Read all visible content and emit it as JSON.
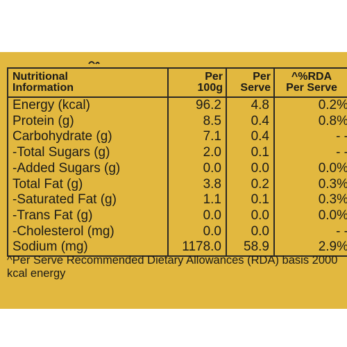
{
  "header": {
    "col1": "Nutritional\nInformation",
    "col2": "Per\n100g",
    "col3": "Per\nServe",
    "col4": "^%RDA\nPer Serve"
  },
  "rows": [
    {
      "name": "Energy (kcal)",
      "per100": "96.2",
      "serve": "4.8",
      "rda": "0.2%"
    },
    {
      "name": "Protein (g)",
      "per100": "8.5",
      "serve": "0.4",
      "rda": "0.8%"
    },
    {
      "name": "Carbohydrate (g)",
      "per100": "7.1",
      "serve": "0.4",
      "rda": "- -"
    },
    {
      "name": "-Total Sugars (g)",
      "per100": "2.0",
      "serve": "0.1",
      "rda": "- -"
    },
    {
      "name": "-Added Sugars (g)",
      "per100": "0.0",
      "serve": "0.0",
      "rda": "0.0%"
    },
    {
      "name": "Total Fat (g)",
      "per100": "3.8",
      "serve": "0.2",
      "rda": "0.3%"
    },
    {
      "name": "-Saturated Fat (g)",
      "per100": "1.1",
      "serve": "0.1",
      "rda": "0.3%"
    },
    {
      "name": "-Trans Fat (g)",
      "per100": "0.0",
      "serve": "0.0",
      "rda": "0.0%"
    },
    {
      "name": "-Cholesterol (mg)",
      "per100": "0.0",
      "serve": "0.0",
      "rda": "- -"
    },
    {
      "name": "Sodium (mg)",
      "per100": "1178.0",
      "serve": "58.9",
      "rda": "2.9%"
    }
  ],
  "footnote": "^Per Serve Recommended Dietary Allowances (RDA) basis 2000 kcal energy",
  "colors": {
    "panel": "#e2b83f",
    "ink": "#1b1a17"
  }
}
